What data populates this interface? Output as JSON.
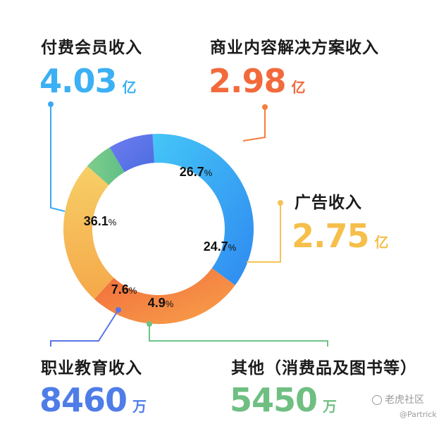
{
  "chart_data": {
    "type": "pie",
    "categories": [
      "付费会员收入",
      "商业内容解决方案收入",
      "广告收入",
      "其他（消费品及图书等）",
      "职业教育收入"
    ],
    "values": [
      36.1,
      26.7,
      24.7,
      4.9,
      7.6
    ],
    "value_labels": [
      "36.1",
      "26.7",
      "24.7",
      "4.9",
      "7.6"
    ],
    "percent_sign": "%",
    "amounts": [
      "4.03",
      "2.98",
      "2.75",
      "5450",
      "8460"
    ],
    "units": [
      "亿",
      "亿",
      "亿",
      "万",
      "万"
    ],
    "colors": [
      "#3aa9f2",
      "#f47e3b",
      "#f5c356",
      "#6dc488",
      "#5a74e8"
    ]
  },
  "watermark": {
    "site": "老虎社区",
    "handle": "@Partrick"
  }
}
